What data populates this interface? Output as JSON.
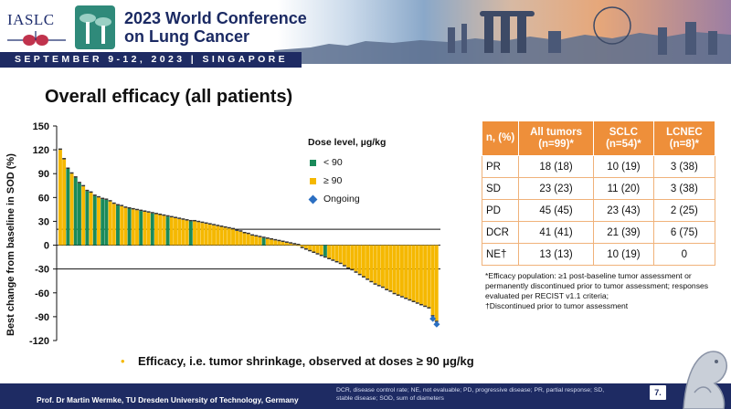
{
  "header": {
    "org_logo_text": "IASLC",
    "conference_title_line1": "2023 World Conference",
    "conference_title_line2": "on Lung Cancer",
    "date_location": "SEPTEMBER 9-12, 2023 | SINGAPORE"
  },
  "slide": {
    "title": "Overall efficacy (all patients)",
    "bullet": "Efficacy, i.e. tumor shrinkage, observed at doses ≥ 90 µg/kg",
    "page_number": "7."
  },
  "legend": {
    "title": "Dose level, µg/kg",
    "items": [
      {
        "label": "< 90",
        "color": "#1a8a5a"
      },
      {
        "label": "≥ 90",
        "color": "#f5b800"
      },
      {
        "label": "Ongoing",
        "color": "#2b6fc2",
        "marker": "diamond"
      }
    ]
  },
  "chart_data": {
    "type": "bar",
    "subtype": "waterfall",
    "ylabel": "Best change from baseline in SOD (%)",
    "ylim": [
      -120,
      150
    ],
    "yticks": [
      150,
      120,
      90,
      60,
      30,
      0,
      -30,
      -60,
      -90,
      -120
    ],
    "reference_lines": [
      20,
      -30
    ],
    "series": [
      {
        "name": "< 90",
        "color": "#1a8a5a"
      },
      {
        "name": "≥ 90",
        "color": "#f5b800"
      }
    ],
    "values": [
      120,
      108,
      96,
      90,
      85,
      78,
      74,
      68,
      66,
      62,
      60,
      58,
      57,
      55,
      52,
      50,
      49,
      47,
      46,
      45,
      44,
      43,
      42,
      41,
      40,
      39,
      38,
      37,
      36,
      35,
      34,
      33,
      32,
      31,
      30,
      30,
      29,
      28,
      27,
      26,
      25,
      24,
      23,
      22,
      21,
      20,
      18,
      17,
      15,
      14,
      12,
      11,
      10,
      9,
      8,
      7,
      6,
      5,
      4,
      3,
      2,
      1,
      0,
      -2,
      -4,
      -6,
      -8,
      -10,
      -12,
      -14,
      -16,
      -18,
      -20,
      -22,
      -25,
      -28,
      -30,
      -33,
      -36,
      -39,
      -42,
      -45,
      -48,
      -50,
      -52,
      -55,
      -57,
      -60,
      -62,
      -64,
      -66,
      -68,
      -70,
      -72,
      -74,
      -76,
      -78,
      -88,
      -95
    ],
    "dose_group": [
      "h",
      "h",
      "l",
      "h",
      "l",
      "l",
      "h",
      "l",
      "h",
      "l",
      "h",
      "l",
      "l",
      "h",
      "h",
      "l",
      "h",
      "h",
      "l",
      "h",
      "h",
      "l",
      "h",
      "h",
      "l",
      "h",
      "h",
      "h",
      "l",
      "h",
      "h",
      "h",
      "h",
      "h",
      "l",
      "h",
      "h",
      "h",
      "h",
      "h",
      "h",
      "h",
      "h",
      "h",
      "h",
      "h",
      "h",
      "h",
      "h",
      "h",
      "h",
      "h",
      "h",
      "l",
      "h",
      "h",
      "h",
      "h",
      "h",
      "h",
      "h",
      "h",
      "h",
      "h",
      "h",
      "h",
      "h",
      "h",
      "h",
      "l",
      "h",
      "h",
      "h",
      "h",
      "h",
      "h",
      "h",
      "h",
      "h",
      "h",
      "h",
      "h",
      "h",
      "h",
      "h",
      "h",
      "h",
      "h",
      "h",
      "h",
      "h",
      "h",
      "h",
      "h",
      "h",
      "h",
      "h",
      "h",
      "h"
    ]
  },
  "table": {
    "headers": [
      "n, (%)",
      "All tumors (n=99)*",
      "SCLC (n=54)*",
      "LCNEC (n=8)*"
    ],
    "rows": [
      [
        "PR",
        "18 (18)",
        "10 (19)",
        "3 (38)"
      ],
      [
        "SD",
        "23 (23)",
        "11 (20)",
        "3 (38)"
      ],
      [
        "PD",
        "45 (45)",
        "23 (43)",
        "2 (25)"
      ],
      [
        "DCR",
        "41 (41)",
        "21 (39)",
        "6 (75)"
      ],
      [
        "NE†",
        "13 (13)",
        "10 (19)",
        "0"
      ]
    ],
    "footnote_1": "*Efficacy population: ≥1 post-baseline tumor assessment or permanently discontinued prior to tumor assessment; responses evaluated per RECIST v1.1 criteria;",
    "footnote_2": "†Discontinued prior to tumor assessment"
  },
  "footer": {
    "speaker": "Prof. Dr Martin Wermke, TU Dresden University of Technology, Germany",
    "abbreviations": "DCR, disease control rate; NE, not evaluable; PD, progressive disease; PR, partial response; SD, stable disease; SOD, sum of diameters"
  }
}
